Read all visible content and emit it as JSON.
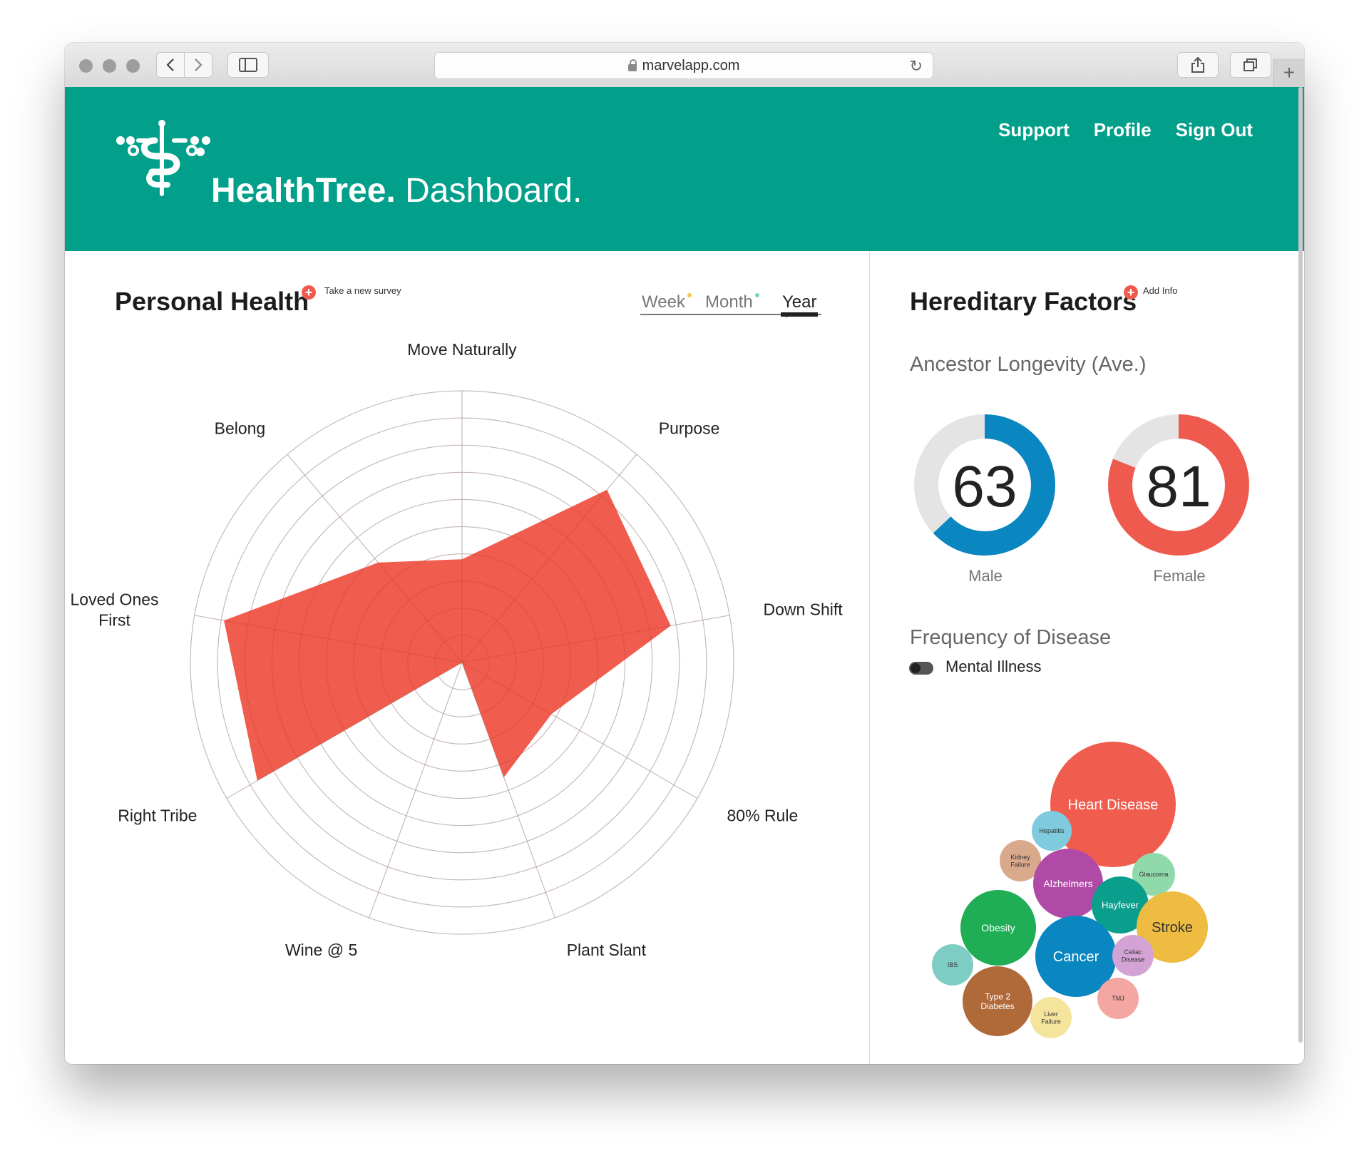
{
  "browser": {
    "url": "marvelapp.com"
  },
  "header": {
    "brand_bold": "HealthTree.",
    "brand_light": "Dashboard.",
    "nav": [
      "Support",
      "Profile",
      "Sign Out"
    ]
  },
  "personal_health": {
    "title": "Personal Health",
    "survey_link": "Take a new survey",
    "tabs": [
      {
        "label": "Week",
        "dot_color": "#f1c94e"
      },
      {
        "label": "Month",
        "dot_color": "#7fd0c3"
      },
      {
        "label": "Year",
        "dot_color": "#ee5a4d"
      }
    ],
    "active_tab": "Year"
  },
  "chart_data": {
    "type": "radar",
    "axes": [
      "Move Naturally",
      "Purpose",
      "Down Shift",
      "80% Rule",
      "Plant Slant",
      "Wine @ 5",
      "Right Tribe",
      "Loved Ones First",
      "Belong"
    ],
    "values": [
      3.8,
      8.3,
      7.8,
      3.8,
      4.5,
      0,
      8.7,
      8.9,
      4.8
    ],
    "scale_max": 10,
    "rings": 10,
    "fill_color": "#f05c4d"
  },
  "hereditary": {
    "title": "Hereditary Factors",
    "add_link": "Add Info",
    "longevity_title": "Ancestor Longevity (Ave.)",
    "male": {
      "value": "63",
      "label": "Male",
      "fraction": 0.63,
      "color": "#0a86c1"
    },
    "female": {
      "value": "81",
      "label": "Female",
      "fraction": 0.81,
      "color": "#ee5a4d"
    },
    "disease_title": "Frequency of Disease",
    "toggle_label": "Mental Illness"
  },
  "diseases": [
    {
      "name": "Heart Disease",
      "color": "#f05c4d"
    },
    {
      "name": "Hepatitis",
      "color": "#7fcadd"
    },
    {
      "name": "Kidney Failure",
      "color": "#d9a98c"
    },
    {
      "name": "Alzheimers",
      "color": "#b14aa6"
    },
    {
      "name": "Glaucoma",
      "color": "#90d9ab"
    },
    {
      "name": "Hayfever",
      "color": "#0a9e8c"
    },
    {
      "name": "Obesity",
      "color": "#1fae56"
    },
    {
      "name": "Stroke",
      "color": "#edbc41"
    },
    {
      "name": "Cancer",
      "color": "#0a86c1"
    },
    {
      "name": "Celiac Disease",
      "color": "#d4a3d5"
    },
    {
      "name": "IBS",
      "color": "#7ecdc4"
    },
    {
      "name": "Type 2 Diabetes",
      "color": "#b06a3a"
    },
    {
      "name": "TMJ",
      "color": "#f4a6a2"
    },
    {
      "name": "Liver Failure",
      "color": "#f5e49c"
    }
  ]
}
